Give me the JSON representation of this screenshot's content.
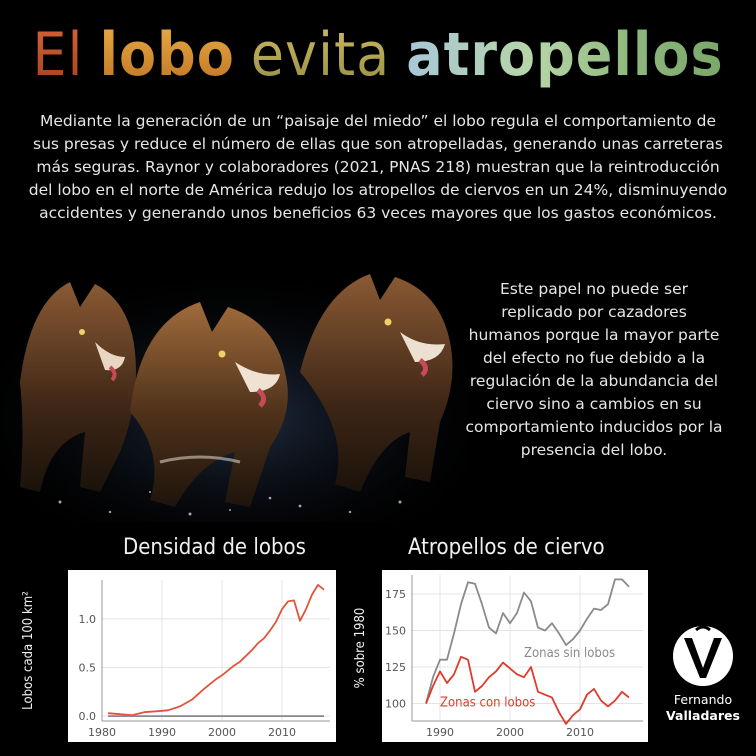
{
  "title": {
    "word1": "El",
    "word2": "lobo",
    "word3": "evita",
    "word4": "atropellos"
  },
  "intro_text": "Mediante la generación de un “paisaje del miedo” el lobo regula el comportamiento de sus presas y reduce el número de ellas que son atropelladas, generando unas carreteras más seguras. Raynor y colaboradores (2021, PNAS 218) muestran que la reintroducción del lobo en el norte de América redujo los atropellos de ciervos en un 24%, disminuyendo accidentes y generando unos beneficios 63 veces mayores que los gastos económicos.",
  "side_text": "Este papel no puede ser replicado por cazadores humanos porque la mayor parte del efecto no fue debido a la regulación de la abundancia del ciervo sino a cambios en su comportamiento inducidos por la presencia del lobo.",
  "chart_data": [
    {
      "type": "line",
      "title": "Densidad de lobos",
      "ylabel": "Lobos cada 100 km²",
      "xlabel": "",
      "xlim": [
        1980,
        2018
      ],
      "ylim": [
        -0.05,
        1.4
      ],
      "xticks": [
        "1980",
        "1990",
        "2000",
        "2010"
      ],
      "yticks": [
        "0.0",
        "0.5",
        "1.0"
      ],
      "grid": true,
      "series": [
        {
          "color": "#e0553a",
          "x": [
            1981,
            1983,
            1985,
            1987,
            1989,
            1991,
            1993,
            1995,
            1997,
            1999,
            2000,
            2001,
            2002,
            2003,
            2004,
            2005,
            2006,
            2007,
            2008,
            2009,
            2010,
            2011,
            2012,
            2013,
            2014,
            2015,
            2016,
            2017
          ],
          "y": [
            0.03,
            0.02,
            0.01,
            0.04,
            0.05,
            0.06,
            0.1,
            0.17,
            0.28,
            0.38,
            0.42,
            0.47,
            0.52,
            0.56,
            0.62,
            0.68,
            0.75,
            0.8,
            0.88,
            0.97,
            1.1,
            1.18,
            1.19,
            0.98,
            1.1,
            1.25,
            1.35,
            1.3
          ]
        },
        {
          "color": "#888888",
          "x": [
            1981,
            2017
          ],
          "y": [
            0.0,
            0.0
          ]
        }
      ]
    },
    {
      "type": "line",
      "title": "Atropellos de ciervo",
      "ylabel": "% sobre 1980",
      "xlabel": "",
      "xlim": [
        1986,
        2019
      ],
      "ylim": [
        88,
        188
      ],
      "xticks": [
        "1990",
        "2000",
        "2010"
      ],
      "yticks": [
        "100",
        "125",
        "150",
        "175"
      ],
      "grid": true,
      "series": [
        {
          "name": "Zonas sin lobos",
          "color": "#8a8a8a",
          "x": [
            1988,
            1989,
            1990,
            1991,
            1992,
            1993,
            1994,
            1995,
            1996,
            1997,
            1998,
            1999,
            2000,
            2001,
            2002,
            2003,
            2004,
            2005,
            2006,
            2007,
            2008,
            2009,
            2010,
            2011,
            2012,
            2013,
            2014,
            2015,
            2016,
            2017
          ],
          "y": [
            100,
            118,
            130,
            130,
            148,
            168,
            183,
            182,
            168,
            152,
            148,
            162,
            155,
            162,
            176,
            170,
            152,
            150,
            155,
            148,
            140,
            144,
            150,
            158,
            165,
            164,
            168,
            185,
            185,
            180
          ]
        },
        {
          "name": "Zonas con lobos",
          "color": "#e03a2a",
          "x": [
            1988,
            1989,
            1990,
            1991,
            1992,
            1993,
            1994,
            1995,
            1996,
            1997,
            1998,
            1999,
            2000,
            2001,
            2002,
            2003,
            2004,
            2005,
            2006,
            2007,
            2008,
            2009,
            2010,
            2011,
            2012,
            2013,
            2014,
            2015,
            2016,
            2017
          ],
          "y": [
            100,
            112,
            122,
            114,
            120,
            132,
            130,
            108,
            112,
            118,
            122,
            128,
            124,
            120,
            118,
            125,
            108,
            106,
            104,
            94,
            86,
            92,
            96,
            106,
            110,
            102,
            98,
            102,
            108,
            104
          ]
        }
      ]
    }
  ],
  "logo": {
    "name_line1": "Fernando",
    "name_line2": "Valladares"
  }
}
